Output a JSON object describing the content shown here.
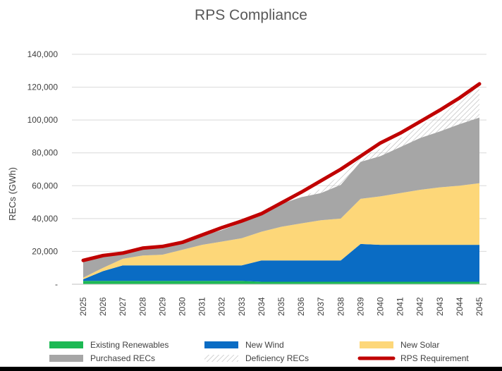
{
  "chart_data": {
    "type": "area",
    "title": "RPS Compliance",
    "ylabel": "RECs (GWh)",
    "xlabel": "",
    "ylim": [
      0,
      140000
    ],
    "y_ticks": [
      0,
      20000,
      40000,
      60000,
      80000,
      100000,
      120000,
      140000
    ],
    "y_tick_labels": [
      "-",
      "20,000",
      "40,000",
      "60,000",
      "80,000",
      "100,000",
      "120,000",
      "140,000"
    ],
    "grid": true,
    "stacked": true,
    "categories": [
      "2025",
      "2026",
      "2027",
      "2028",
      "2029",
      "2030",
      "2031",
      "2032",
      "2033",
      "2034",
      "2035",
      "2036",
      "2037",
      "2038",
      "2039",
      "2040",
      "2041",
      "2042",
      "2043",
      "2044",
      "2045"
    ],
    "series": [
      {
        "name": "Existing Renewables",
        "kind": "area",
        "color": "#1db954",
        "values": [
          2000,
          2000,
          2000,
          2000,
          2000,
          2000,
          2000,
          2000,
          2000,
          1500,
          1500,
          1500,
          1500,
          1500,
          1500,
          1500,
          1500,
          1500,
          1500,
          1500,
          1500
        ]
      },
      {
        "name": "New Wind",
        "kind": "area",
        "color": "#0a6cc4",
        "values": [
          1000,
          6000,
          9500,
          9500,
          9500,
          9500,
          9500,
          9500,
          9500,
          13000,
          13000,
          13000,
          13000,
          13000,
          23000,
          22500,
          22500,
          22500,
          22500,
          22500,
          22500
        ]
      },
      {
        "name": "New Solar",
        "kind": "area",
        "color": "#fdd779",
        "values": [
          1000,
          2000,
          4000,
          6000,
          6500,
          9500,
          12500,
          14500,
          16500,
          17500,
          20500,
          22500,
          24500,
          25500,
          27500,
          29500,
          31500,
          33500,
          35000,
          36000,
          37500
        ]
      },
      {
        "name": "Purchased RECs",
        "kind": "area",
        "color": "#a6a6a6",
        "values": [
          10000,
          7500,
          3000,
          4000,
          4500,
          5000,
          5500,
          7000,
          9500,
          10000,
          14000,
          16000,
          16500,
          20500,
          22500,
          24500,
          28000,
          31500,
          34000,
          37500,
          40000
        ]
      },
      {
        "name": "Deficiency RECs",
        "kind": "hatch",
        "color": "#bfbfbf",
        "values": [
          0,
          0,
          0,
          0,
          0,
          0,
          0,
          0,
          0,
          0,
          0,
          0,
          2500,
          6000,
          3000,
          4500,
          5500,
          7500,
          10000,
          14500,
          20500
        ]
      },
      {
        "name": "RPS Requirement",
        "kind": "line",
        "color": "#c00000",
        "values": [
          14500,
          17500,
          19000,
          22000,
          23000,
          25500,
          30000,
          34500,
          38500,
          43000,
          49500,
          56000,
          63000,
          70000,
          78000,
          86000,
          92000,
          99000,
          106000,
          113500,
          122000
        ]
      }
    ],
    "legend_position": "bottom",
    "legend": [
      "Existing Renewables",
      "New Wind",
      "New Solar",
      "Purchased RECs",
      "Deficiency RECs",
      "RPS Requirement"
    ]
  }
}
